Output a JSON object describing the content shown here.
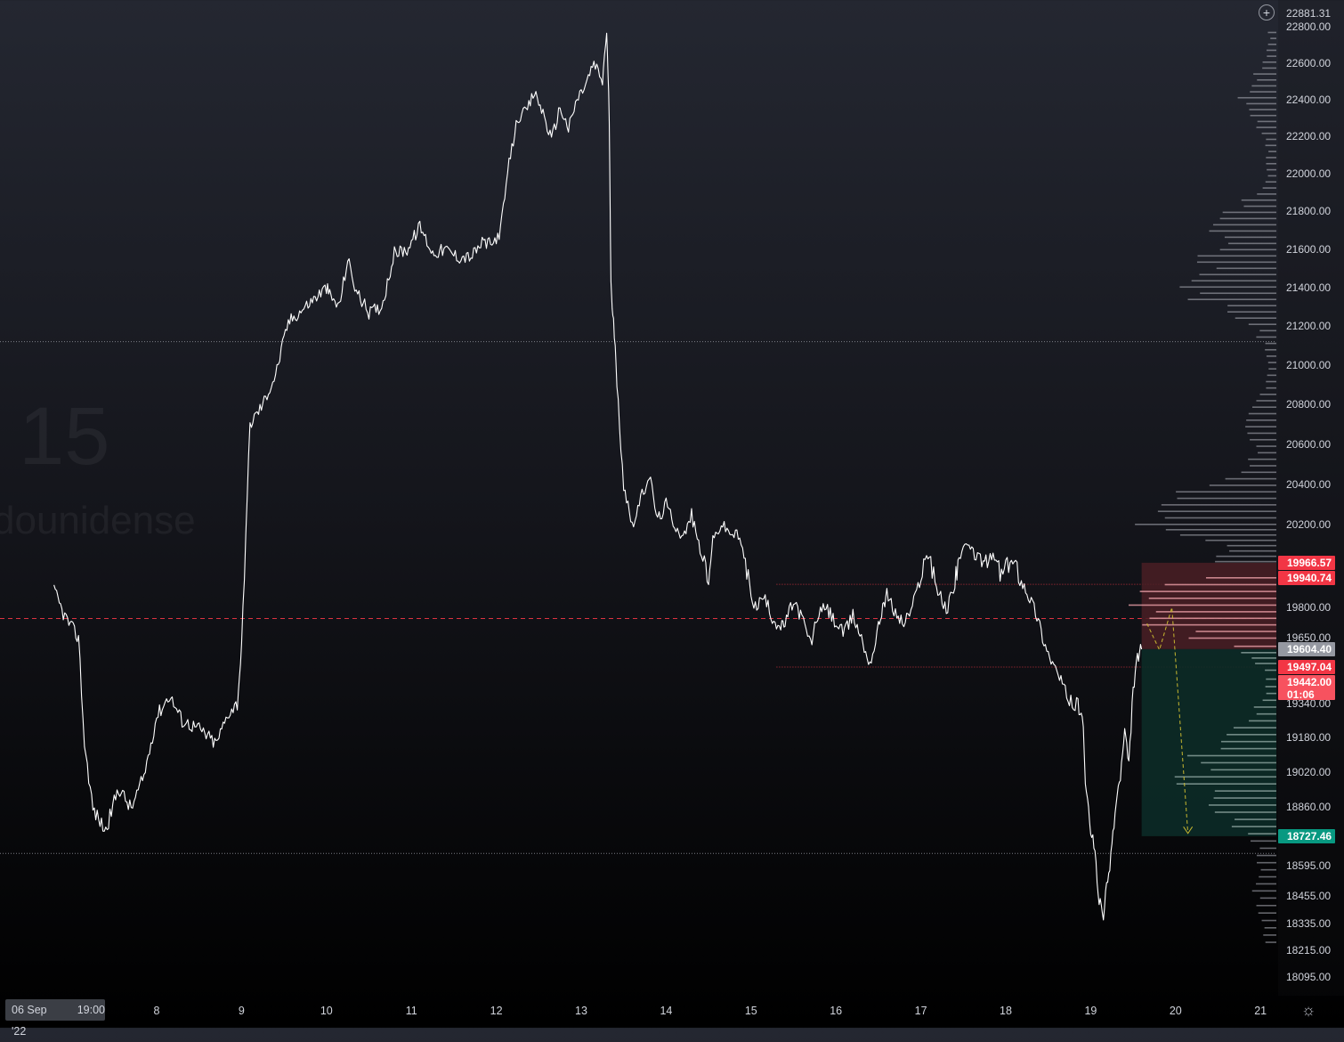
{
  "watermark": {
    "interval": ", 15",
    "symbol": "dounidense"
  },
  "header": {
    "top_price": "22881.31"
  },
  "time_axis": {
    "badge_date": "06 Sep '22",
    "badge_time": "19:00",
    "ticks": [
      "8",
      "9",
      "10",
      "11",
      "12",
      "13",
      "14",
      "15",
      "16",
      "17",
      "18",
      "19",
      "20",
      "21"
    ]
  },
  "colors": {
    "price_line": "#ffffff",
    "resistance_tag": "#f23645",
    "target_tag": "#089981",
    "current_tag": "#f7525f",
    "stop_zone": "#4a1e24",
    "target_zone": "#0c2b27",
    "volume_profile": "#b2b5be",
    "forecast_arrow": "#c8b830"
  },
  "chart_data": {
    "type": "line",
    "ylim": [
      18000,
      22900
    ],
    "xlim": [
      "06 Sep 19:00",
      "21 Sep"
    ],
    "grid": false,
    "y_ticks": [
      "22800.00",
      "22600.00",
      "22400.00",
      "22200.00",
      "22000.00",
      "21800.00",
      "21600.00",
      "21400.00",
      "21200.00",
      "21000.00",
      "20800.00",
      "20600.00",
      "20400.00",
      "20200.00",
      "19800.00",
      "19650.00",
      "19340.00",
      "19180.00",
      "19020.00",
      "18860.00",
      "18595.00",
      "18455.00",
      "18335.00",
      "18215.00",
      "18095.00"
    ],
    "x_day_labels": [
      "8",
      "9",
      "10",
      "11",
      "12",
      "13",
      "14",
      "15",
      "16",
      "17",
      "18",
      "19",
      "20",
      "21"
    ],
    "series": [
      {
        "x_days": [
          6.79,
          6.9,
          7.0,
          7.08,
          7.15,
          7.25,
          7.4,
          7.55,
          7.7,
          7.85,
          8.0,
          8.15,
          8.3,
          8.5,
          8.7,
          8.85,
          8.95,
          9.0,
          9.1,
          9.25,
          9.4,
          9.55,
          9.7,
          9.85,
          10.0,
          10.05,
          10.15,
          10.25,
          10.35,
          10.5,
          10.65,
          10.8,
          10.95,
          11.1,
          11.25,
          11.4,
          11.55,
          11.7,
          11.85,
          11.95,
          12.05,
          12.15,
          12.25,
          12.35,
          12.45,
          12.55,
          12.65,
          12.75,
          12.85,
          12.95,
          13.05,
          13.15,
          13.25,
          13.3,
          13.33,
          13.35,
          13.38,
          13.42,
          13.5,
          13.6,
          13.7,
          13.8,
          13.9,
          14.0,
          14.1,
          14.2,
          14.3,
          14.4,
          14.5,
          14.55,
          14.65,
          14.75,
          14.85,
          14.95,
          15.05,
          15.15,
          15.25,
          15.35,
          15.4,
          15.5,
          15.6,
          15.7,
          15.8,
          15.9,
          16.0,
          16.1,
          16.2,
          16.3,
          16.4,
          16.5,
          16.55,
          16.6,
          16.7,
          16.8,
          16.9,
          17.0,
          17.1,
          17.2,
          17.3,
          17.4,
          17.45,
          17.55,
          17.65,
          17.75,
          17.85,
          17.95,
          18.05,
          18.15,
          18.25,
          18.35,
          18.45,
          18.55,
          18.65,
          18.75,
          18.85,
          18.9,
          18.95,
          19.0,
          19.05,
          19.1,
          19.15,
          19.2,
          19.25,
          19.3,
          19.35,
          19.4,
          19.45,
          19.5,
          19.55,
          19.6
        ],
        "values": [
          19880,
          19770,
          19700,
          19650,
          19150,
          18850,
          18750,
          18950,
          18850,
          19000,
          19280,
          19380,
          19260,
          19220,
          19150,
          19300,
          19340,
          19600,
          20700,
          20800,
          20950,
          21220,
          21280,
          21340,
          21400,
          21350,
          21300,
          21550,
          21380,
          21270,
          21300,
          21580,
          21600,
          21720,
          21580,
          21600,
          21560,
          21560,
          21640,
          21620,
          21700,
          22050,
          22300,
          22330,
          22440,
          22330,
          22180,
          22360,
          22240,
          22400,
          22480,
          22600,
          22500,
          22780,
          22300,
          21400,
          21250,
          20900,
          20400,
          20200,
          20320,
          20450,
          20220,
          20300,
          20200,
          20120,
          20250,
          20050,
          19900,
          20100,
          20200,
          20150,
          20130,
          19950,
          19800,
          19850,
          19750,
          19700,
          19720,
          19830,
          19750,
          19620,
          19780,
          19790,
          19720,
          19670,
          19760,
          19650,
          19520,
          19700,
          19810,
          19860,
          19770,
          19720,
          19800,
          19950,
          20020,
          19880,
          19780,
          19920,
          20000,
          20070,
          20010,
          19980,
          20000,
          19940,
          19980,
          19950,
          19880,
          19780,
          19640,
          19520,
          19440,
          19350,
          19330,
          19300,
          18900,
          18760,
          18650,
          18420,
          18380,
          18520,
          18690,
          18880,
          19000,
          19200,
          19050,
          19410,
          19550,
          19604
        ]
      }
    ],
    "profile_rows": 140
  },
  "price_tags": [
    {
      "label": "19966.57",
      "value": 19966.57,
      "color": "#f23645"
    },
    {
      "label": "19940.74",
      "value": 19940.74,
      "color": "#f23645"
    },
    {
      "label": "19604.40",
      "value": 19604.4,
      "color": "#9598a1"
    },
    {
      "label": "19497.04",
      "value": 19497.04,
      "color": "#f23645"
    },
    {
      "label": "19442.00",
      "value": 19442.0,
      "color": "#f7525f",
      "countdown": "01:06"
    },
    {
      "label": "18727.46",
      "value": 18727.46,
      "color": "#089981"
    }
  ],
  "levels": {
    "dotted_gray": [
      21120,
      18650
    ],
    "dotted_red": [
      19910,
      19497
    ],
    "dashed_red": 19745
  },
  "position": {
    "entry": 19604.4,
    "stop": 19966.57,
    "target": 18727.46,
    "x_start_day": 19.6,
    "x_end_day": 20.7
  }
}
